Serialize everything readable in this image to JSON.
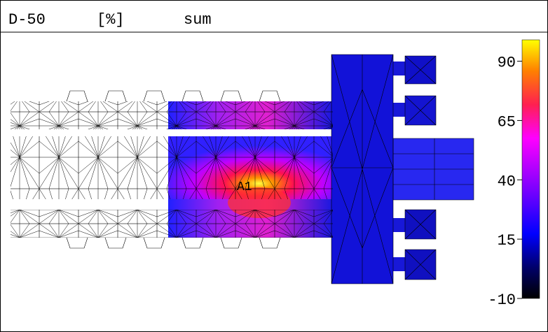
{
  "header": {
    "title": "D-50",
    "unit": "[%]",
    "mode": "sum"
  },
  "plot": {
    "marker": "A1"
  },
  "colorbar": {
    "lim": [
      -10,
      99
    ],
    "ticks": [
      -10,
      15,
      40,
      65,
      90
    ]
  }
}
